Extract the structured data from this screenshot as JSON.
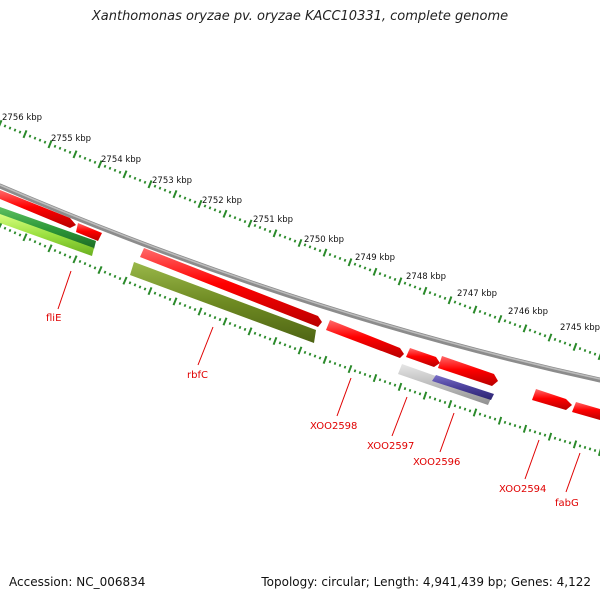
{
  "title": "Xanthomonas oryzae pv. oryzae KACC10331, complete genome",
  "footer": {
    "accession": "Accession: NC_006834",
    "summary": "Topology: circular; Length: 4,941,439 bp; Genes: 4,122"
  },
  "scale_labels": [
    "2756 kbp",
    "2755 kbp",
    "2754 kbp",
    "2753 kbp",
    "2752 kbp",
    "2751 kbp",
    "2750 kbp",
    "2749 kbp",
    "2748 kbp",
    "2747 kbp",
    "2746 kbp",
    "2745 kbp"
  ],
  "gene_labels": [
    "fliE",
    "rbfC",
    "XOO2598",
    "XOO2597",
    "XOO2596",
    "XOO2594",
    "fabG"
  ],
  "colors": {
    "backbone": "#8c8c8c",
    "ticks": "#2a8a2a",
    "gene_red": "#ff0000",
    "gene_green": "#2e9a3a",
    "gene_lightgreen": "#9be040",
    "gene_olive": "#6e8a22",
    "gene_gray": "#b8b8b8",
    "gene_purple": "#4a3f9a",
    "label": "#e00000"
  }
}
